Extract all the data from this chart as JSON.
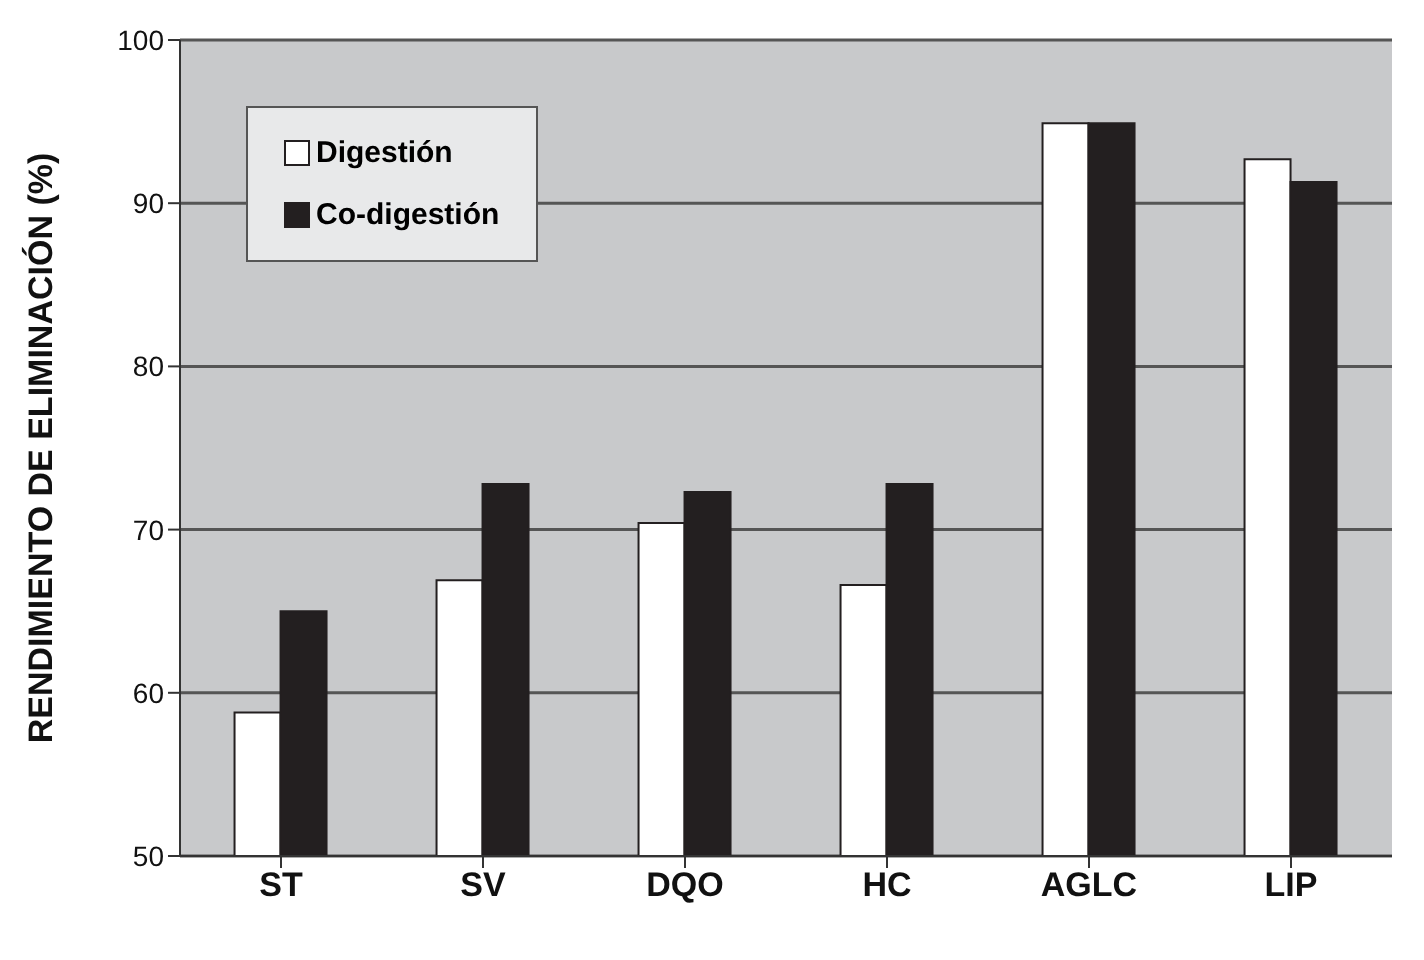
{
  "chart_data": {
    "type": "bar",
    "ylabel": "RENDIMIENTO DE ELIMINACIÓN (%)",
    "categories": [
      "ST",
      "SV",
      "DQO",
      "HC",
      "AGLC",
      "LIP"
    ],
    "series": [
      {
        "name": "Digestión",
        "color": "#ffffff",
        "values": [
          58.8,
          66.9,
          70.4,
          66.6,
          94.9,
          92.7
        ]
      },
      {
        "name": "Co-digestión",
        "color": "#231f20",
        "values": [
          65.0,
          72.8,
          72.3,
          72.8,
          94.9,
          91.3
        ]
      }
    ],
    "ylim": [
      50,
      100
    ],
    "yticks": [
      50,
      60,
      70,
      80,
      90,
      100
    ],
    "grid": "y",
    "legend": "top left"
  }
}
